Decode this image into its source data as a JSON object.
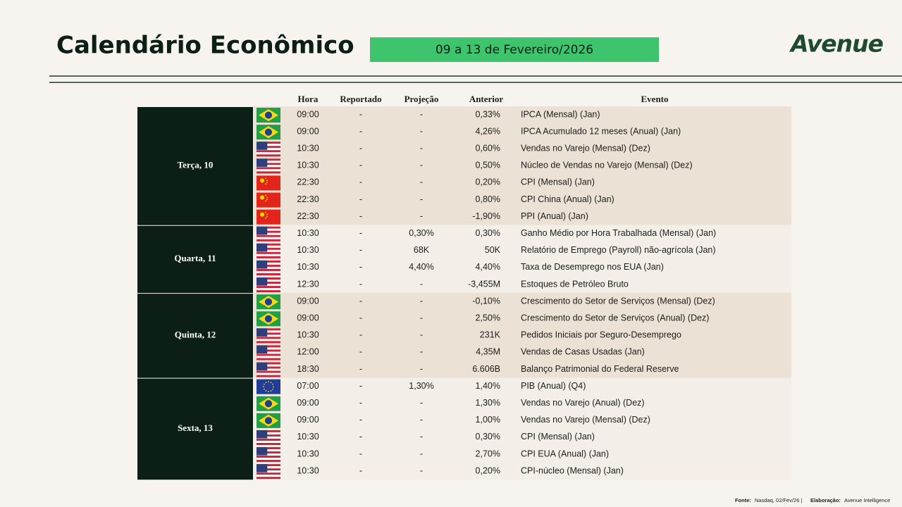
{
  "header": {
    "title": "Calendário Econômico",
    "date_range": "09 a 13 de Fevereiro/2026",
    "logo": "Avenue"
  },
  "table": {
    "columns": [
      "Hora",
      "Reportado",
      "Projeção",
      "Anterior",
      "Evento"
    ],
    "days": [
      {
        "label": "Terça, 10",
        "rows": [
          [
            "09:00",
            "-",
            "-",
            "0,33%",
            "IPCA (Mensal) (Jan)"
          ],
          [
            "09:00",
            "-",
            "-",
            "4,26%",
            "IPCA Acumulado 12 meses (Anual) (Jan)"
          ],
          [
            "10:30",
            "-",
            "-",
            "0,60%",
            "Vendas no Varejo (Mensal) (Dez)"
          ],
          [
            "10:30",
            "-",
            "-",
            "0,50%",
            "Núcleo de Vendas no Varejo (Mensal) (Dez)"
          ],
          [
            "22:30",
            "-",
            "-",
            "0,20%",
            "CPI (Mensal) (Jan)"
          ],
          [
            "22:30",
            "-",
            "-",
            "0,80%",
            "CPI China (Anual) (Jan)"
          ],
          [
            "22:30",
            "-",
            "-",
            "-1,90%",
            "PPI (Anual) (Jan)"
          ]
        ]
      },
      {
        "label": "Quarta, 11",
        "rows": [
          [
            "10:30",
            "-",
            "0,30%",
            "0,30%",
            "Ganho Médio por Hora Trabalhada (Mensal) (Jan)"
          ],
          [
            "10:30",
            "-",
            "68K",
            "50K",
            "Relatório de Emprego (Payroll) não-agrícola (Jan)"
          ],
          [
            "10:30",
            "-",
            "4,40%",
            "4,40%",
            "Taxa de Desemprego nos EUA (Jan)"
          ],
          [
            "12:30",
            "-",
            "-",
            "-3,455M",
            "Estoques de Petróleo Bruto"
          ]
        ]
      },
      {
        "label": "Quinta, 12",
        "rows": [
          [
            "09:00",
            "-",
            "-",
            "-0,10%",
            "Crescimento do Setor de Serviços (Mensal) (Dez)"
          ],
          [
            "09:00",
            "-",
            "-",
            "2,50%",
            "Crescimento do Setor de Serviços (Anual) (Dez)"
          ],
          [
            "10:30",
            "-",
            "-",
            "231K",
            "Pedidos Iniciais por Seguro-Desemprego"
          ],
          [
            "12:00",
            "-",
            "-",
            "4,35M",
            "Vendas de Casas Usadas (Jan)"
          ],
          [
            "18:30",
            "-",
            "-",
            "6.606B",
            "Balanço Patrimonial do Federal Reserve"
          ]
        ]
      },
      {
        "label": "Sexta, 13",
        "rows": [
          [
            "07:00",
            "-",
            "1,30%",
            "1,40%",
            "PIB (Anual) (Q4)"
          ],
          [
            "09:00",
            "-",
            "-",
            "1,30%",
            "Vendas no Varejo (Anual) (Dez)"
          ],
          [
            "09:00",
            "-",
            "-",
            "1,00%",
            "Vendas no Varejo (Mensal) (Dez)"
          ],
          [
            "10:30",
            "-",
            "-",
            "0,30%",
            "CPI (Mensal) (Jan)"
          ],
          [
            "10:30",
            "-",
            "-",
            "2,70%",
            "CPI EUA (Anual) (Jan)"
          ],
          [
            "10:30",
            "-",
            "-",
            "0,20%",
            "CPI-núcleo (Mensal) (Jan)"
          ]
        ]
      }
    ]
  },
  "footer": {
    "source_label": "Fonte:",
    "source": "Nasdaq, 02/Fev/26 |",
    "author_label": "Elaboração:",
    "author": "Avenue Intelligence"
  }
}
